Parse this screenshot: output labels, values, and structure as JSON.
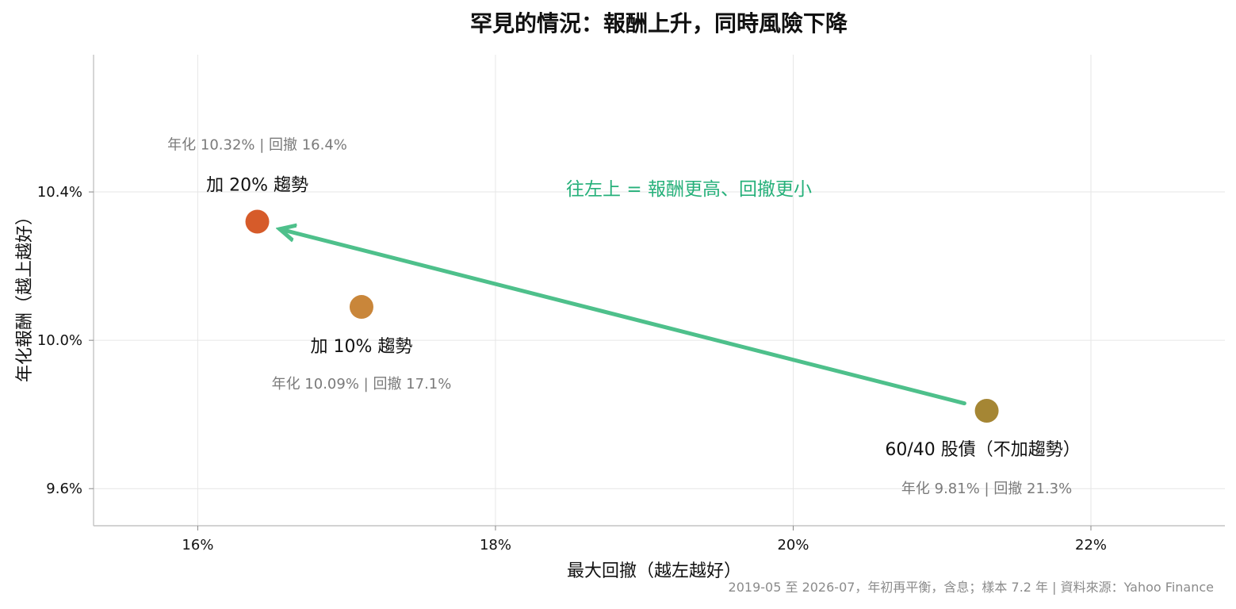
{
  "chart_data": {
    "type": "scatter",
    "title": "罕見的情況：報酬上升，同時風險下降",
    "xlabel": "最大回撤（越左越好）",
    "ylabel": "年化報酬（越上越好）",
    "xlim": [
      15.3,
      22.9
    ],
    "ylim": [
      9.5,
      10.77
    ],
    "x_ticks": [
      16,
      18,
      20,
      22
    ],
    "x_tick_labels": [
      "16%",
      "18%",
      "20%",
      "22%"
    ],
    "y_ticks": [
      9.6,
      10.0,
      10.4
    ],
    "y_tick_labels": [
      "9.6%",
      "10.0%",
      "10.4%"
    ],
    "grid": true,
    "points": [
      {
        "label": "加 20% 趨勢",
        "stats": "年化 10.32% | 回撤 16.4%",
        "x": 16.4,
        "y": 10.32,
        "color": "#d65b2a"
      },
      {
        "label": "加 10% 趨勢",
        "stats": "年化 10.09% | 回撤 17.1%",
        "x": 17.1,
        "y": 10.09,
        "color": "#c9863a"
      },
      {
        "label": "60/40 股債（不加趨勢）",
        "stats": "年化 9.81% | 回撤 21.3%",
        "x": 21.3,
        "y": 9.81,
        "color": "#a58634"
      }
    ],
    "annotation": {
      "text": "往左上 = 報酬更高、回撤更小",
      "color": "#26b07a"
    },
    "arrow": {
      "from": {
        "x": 21.15,
        "y": 9.83
      },
      "to": {
        "x": 16.55,
        "y": 10.3
      },
      "color": "#4ec08b"
    },
    "footer": "2019-05 至 2026-07，年初再平衡，含息；樣本 7.2 年 | 資料來源：Yahoo Finance"
  }
}
